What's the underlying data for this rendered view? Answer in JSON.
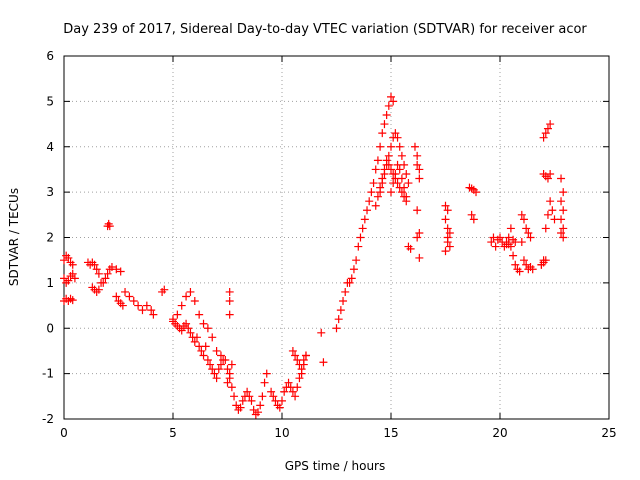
{
  "chart_data": {
    "type": "scatter",
    "title": "Day 239 of 2017, Sidereal Day-to-day VTEC variation (SDTVAR) for receiver acor",
    "xlabel": "GPS time / hours",
    "ylabel": "SDTVAR / TECUs",
    "xlim": [
      0,
      25
    ],
    "ylim": [
      -2,
      6
    ],
    "x_ticks": [
      "0",
      "5",
      "10",
      "15",
      "20",
      "25"
    ],
    "y_ticks": [
      "-2",
      "-1",
      "0",
      "1",
      "2",
      "3",
      "4",
      "5",
      "6"
    ],
    "grid": true,
    "marker": "+",
    "colors": {
      "series": "#ff0000",
      "grid": "#a0a0a0"
    },
    "series": [
      {
        "name": "SDTVAR",
        "x": [
          0.0,
          0.1,
          0.2,
          0.3,
          0.4,
          0.0,
          0.1,
          0.2,
          0.3,
          0.4,
          0.5,
          0.0,
          0.1,
          0.2,
          0.3,
          0.4,
          1.1,
          1.2,
          1.3,
          1.4,
          1.5,
          1.6,
          1.7,
          1.8,
          1.9,
          2.0,
          2.1,
          2.2,
          2.4,
          2.6,
          2.8,
          3.0,
          3.2,
          3.4,
          3.6,
          3.8,
          1.3,
          1.4,
          1.5,
          1.6,
          2.0,
          2.05,
          2.1,
          2.4,
          2.5,
          2.6,
          2.7,
          4.0,
          4.1,
          4.5,
          4.6,
          5.0,
          5.1,
          5.2,
          5.3,
          5.4,
          5.5,
          5.6,
          5.7,
          5.8,
          5.9,
          6.0,
          6.1,
          6.2,
          6.3,
          6.4,
          6.5,
          6.6,
          6.7,
          6.8,
          6.9,
          7.0,
          7.1,
          7.2,
          7.3,
          5.0,
          5.2,
          5.4,
          5.6,
          5.8,
          6.0,
          6.2,
          6.4,
          6.6,
          6.8,
          7.0,
          7.2,
          7.4,
          7.5,
          7.6,
          7.7,
          7.8,
          7.5,
          7.6,
          7.7,
          7.6,
          7.6,
          7.6,
          7.9,
          8.0,
          8.1,
          8.2,
          8.3,
          8.4,
          8.5,
          8.6,
          8.7,
          8.8,
          8.9,
          9.0,
          9.1,
          9.2,
          9.3,
          9.5,
          9.6,
          9.7,
          9.8,
          9.9,
          10.0,
          10.1,
          10.2,
          10.3,
          10.4,
          10.5,
          10.6,
          10.7,
          10.8,
          10.9,
          11.0,
          11.1,
          10.5,
          10.6,
          10.7,
          10.8,
          10.9,
          11.0,
          11.1,
          11.8,
          11.9,
          12.5,
          12.6,
          12.7,
          12.8,
          12.9,
          13.0,
          13.1,
          13.2,
          13.3,
          13.4,
          13.5,
          13.6,
          13.7,
          13.8,
          13.9,
          14.0,
          14.1,
          14.2,
          14.3,
          14.4,
          14.5,
          14.6,
          14.7,
          14.8,
          14.9,
          15.0,
          15.1,
          14.5,
          14.6,
          14.7,
          14.8,
          14.9,
          15.0,
          15.1,
          15.2,
          15.3,
          15.4,
          15.5,
          15.6,
          15.7,
          15.8,
          14.3,
          14.4,
          14.5,
          14.6,
          14.7,
          14.8,
          14.9,
          15.0,
          15.1,
          15.2,
          15.3,
          15.4,
          15.5,
          15.6,
          15.7,
          15.0,
          15.1,
          15.2,
          15.3,
          15.4,
          15.5,
          15.6,
          15.7,
          16.1,
          16.2,
          16.2,
          16.3,
          16.3,
          16.2,
          16.3,
          16.2,
          16.3,
          15.8,
          15.9,
          17.5,
          17.5,
          17.6,
          17.6,
          17.7,
          17.5,
          17.6,
          17.7,
          17.6,
          18.6,
          18.7,
          18.8,
          18.9,
          18.7,
          18.8,
          19.6,
          19.7,
          19.8,
          19.9,
          20.0,
          20.1,
          20.2,
          20.3,
          20.4,
          20.5,
          20.6,
          20.7,
          20.8,
          20.9,
          21.0,
          21.1,
          21.2,
          21.3,
          21.4,
          21.5,
          20.3,
          20.4,
          20.5,
          20.6,
          20.7,
          21.0,
          21.1,
          21.2,
          21.3,
          21.4,
          21.9,
          22.0,
          22.1,
          22.2,
          22.3,
          22.4,
          22.5,
          22.0,
          22.1,
          22.2,
          22.3,
          22.0,
          22.1,
          22.2,
          22.3,
          21.9,
          22.0,
          22.1,
          22.8,
          22.9,
          22.8,
          22.9,
          22.8,
          22.9,
          22.8,
          22.9
        ],
        "y": [
          1.5,
          1.6,
          1.55,
          1.45,
          1.4,
          1.1,
          1.0,
          1.05,
          1.15,
          1.2,
          1.1,
          0.6,
          0.65,
          0.6,
          0.65,
          0.62,
          1.45,
          1.4,
          1.45,
          1.4,
          1.3,
          1.2,
          1.0,
          1.0,
          1.1,
          1.2,
          1.3,
          1.35,
          1.3,
          1.25,
          0.8,
          0.7,
          0.6,
          0.5,
          0.4,
          0.5,
          0.9,
          0.85,
          0.8,
          0.85,
          2.25,
          2.3,
          2.25,
          0.7,
          0.6,
          0.55,
          0.5,
          0.4,
          0.3,
          0.8,
          0.85,
          0.15,
          0.1,
          0.05,
          0.0,
          -0.05,
          0.05,
          0.1,
          0.0,
          -0.1,
          -0.2,
          -0.3,
          -0.2,
          -0.4,
          -0.5,
          -0.6,
          -0.4,
          -0.7,
          -0.8,
          -0.9,
          -1.0,
          -1.1,
          -0.9,
          -0.8,
          -0.7,
          0.2,
          0.3,
          0.5,
          0.7,
          0.8,
          0.6,
          0.3,
          0.1,
          0.0,
          -0.2,
          -0.5,
          -0.6,
          -0.7,
          -0.9,
          -1.1,
          -1.3,
          -1.5,
          -1.2,
          -1.0,
          -0.8,
          0.8,
          0.6,
          0.3,
          -1.7,
          -1.8,
          -1.75,
          -1.6,
          -1.5,
          -1.4,
          -1.5,
          -1.6,
          -1.8,
          -1.9,
          -1.85,
          -1.7,
          -1.5,
          -1.2,
          -1.0,
          -1.4,
          -1.5,
          -1.6,
          -1.7,
          -1.75,
          -1.6,
          -1.4,
          -1.3,
          -1.2,
          -1.3,
          -1.4,
          -1.5,
          -1.3,
          -1.1,
          -1.0,
          -0.8,
          -0.6,
          -0.5,
          -0.6,
          -0.7,
          -0.8,
          -0.9,
          -0.7,
          -0.6,
          -0.1,
          -0.75,
          0.0,
          0.2,
          0.4,
          0.6,
          0.8,
          1.0,
          1.0,
          1.1,
          1.3,
          1.5,
          1.8,
          2.0,
          2.2,
          2.4,
          2.6,
          2.8,
          3.0,
          3.2,
          3.5,
          3.7,
          4.0,
          4.3,
          4.5,
          4.7,
          4.9,
          5.1,
          5.0,
          3.0,
          3.2,
          3.4,
          3.6,
          3.8,
          4.0,
          4.2,
          4.3,
          4.2,
          4.0,
          3.8,
          3.6,
          3.4,
          3.2,
          2.7,
          2.9,
          3.1,
          3.3,
          3.5,
          3.7,
          3.6,
          3.5,
          3.4,
          3.3,
          3.2,
          3.1,
          3.0,
          2.9,
          2.8,
          3.0,
          3.2,
          3.4,
          3.6,
          3.5,
          3.3,
          3.1,
          2.9,
          4.0,
          3.8,
          3.6,
          3.3,
          3.5,
          2.6,
          2.1,
          2.0,
          1.55,
          1.8,
          1.75,
          2.7,
          2.4,
          2.2,
          2.0,
          1.8,
          1.7,
          1.9,
          2.1,
          2.6,
          3.1,
          3.08,
          3.05,
          3.0,
          2.5,
          2.4,
          1.9,
          2.0,
          1.8,
          1.95,
          2.0,
          1.9,
          1.8,
          1.85,
          2.0,
          2.2,
          1.6,
          1.4,
          1.3,
          1.25,
          1.9,
          1.5,
          1.4,
          1.3,
          1.35,
          1.3,
          1.9,
          1.85,
          1.8,
          1.95,
          1.9,
          2.5,
          2.4,
          2.2,
          2.1,
          2.0,
          1.4,
          1.5,
          2.2,
          2.5,
          2.8,
          2.6,
          2.4,
          4.2,
          4.3,
          4.4,
          4.5,
          3.4,
          3.35,
          3.3,
          3.4,
          1.4,
          1.45,
          1.5,
          3.3,
          3.0,
          2.8,
          2.6,
          2.4,
          2.2,
          2.1,
          2.0
        ]
      }
    ]
  }
}
